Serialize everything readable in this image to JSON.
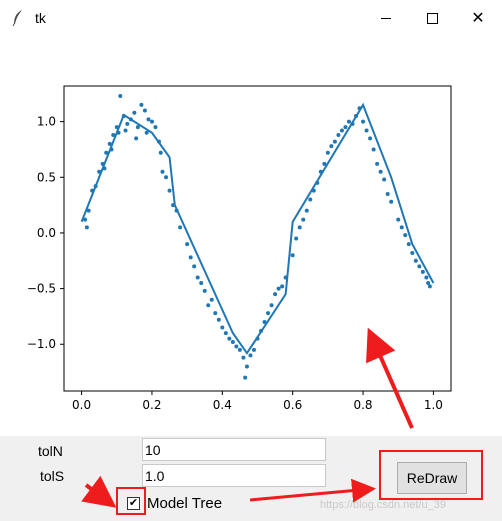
{
  "window": {
    "title": "tk"
  },
  "fields": {
    "toln_label": "tolN",
    "toln_value": "10",
    "tols_label": "tolS",
    "tols_value": "1.0"
  },
  "checkbox": {
    "label": "Model Tree",
    "checked": true,
    "mark": "✔"
  },
  "button": {
    "label": "ReDraw"
  },
  "watermark": "https://blog.csdn.net/u_39",
  "colors": {
    "series": "#1f77b4",
    "annotation": "#ee1c1c"
  },
  "chart_data": {
    "type": "scatter",
    "xlim": [
      -0.05,
      1.05
    ],
    "ylim": [
      -1.42,
      1.32
    ],
    "xticks": [
      "0.0",
      "0.2",
      "0.4",
      "0.6",
      "0.8",
      "1.0"
    ],
    "xtick_values": [
      0.0,
      0.2,
      0.4,
      0.6,
      0.8,
      1.0
    ],
    "yticks": [
      "1.0",
      "0.5",
      "0.0",
      "−0.5",
      "−1.0"
    ],
    "ytick_values": [
      1.0,
      0.5,
      0.0,
      -0.5,
      -1.0
    ],
    "scatter_x": [
      0.01,
      0.015,
      0.02,
      0.03,
      0.04,
      0.05,
      0.06,
      0.065,
      0.07,
      0.08,
      0.085,
      0.09,
      0.1,
      0.105,
      0.11,
      0.12,
      0.125,
      0.13,
      0.14,
      0.15,
      0.155,
      0.16,
      0.17,
      0.18,
      0.185,
      0.19,
      0.2,
      0.21,
      0.22,
      0.225,
      0.23,
      0.24,
      0.25,
      0.26,
      0.27,
      0.28,
      0.3,
      0.31,
      0.32,
      0.33,
      0.34,
      0.35,
      0.36,
      0.37,
      0.38,
      0.39,
      0.4,
      0.41,
      0.42,
      0.43,
      0.44,
      0.45,
      0.46,
      0.465,
      0.47,
      0.48,
      0.49,
      0.5,
      0.51,
      0.52,
      0.53,
      0.54,
      0.55,
      0.56,
      0.57,
      0.58,
      0.6,
      0.61,
      0.62,
      0.63,
      0.64,
      0.65,
      0.66,
      0.67,
      0.68,
      0.69,
      0.7,
      0.71,
      0.72,
      0.73,
      0.74,
      0.75,
      0.76,
      0.77,
      0.78,
      0.79,
      0.8,
      0.81,
      0.82,
      0.83,
      0.84,
      0.85,
      0.86,
      0.87,
      0.88,
      0.9,
      0.91,
      0.92,
      0.93,
      0.94,
      0.95,
      0.96,
      0.97,
      0.98,
      0.985,
      0.99
    ],
    "scatter_y": [
      0.12,
      0.05,
      0.2,
      0.38,
      0.42,
      0.55,
      0.62,
      0.58,
      0.72,
      0.8,
      0.75,
      0.88,
      0.95,
      0.9,
      1.23,
      1.05,
      0.92,
      0.98,
      1.02,
      1.08,
      0.85,
      0.95,
      1.15,
      1.1,
      0.9,
      1.02,
      1.0,
      0.95,
      0.82,
      0.72,
      0.55,
      0.5,
      0.38,
      0.25,
      0.2,
      0.05,
      -0.1,
      -0.22,
      -0.3,
      -0.4,
      -0.45,
      -0.52,
      -0.65,
      -0.6,
      -0.72,
      -0.78,
      -0.85,
      -0.9,
      -0.95,
      -0.98,
      -1.02,
      -1.05,
      -1.12,
      -1.3,
      -1.2,
      -1.1,
      -1.05,
      -0.95,
      -0.88,
      -0.8,
      -0.72,
      -0.65,
      -0.55,
      -0.5,
      -0.48,
      -0.4,
      -0.2,
      -0.05,
      0.05,
      0.12,
      0.2,
      0.3,
      0.38,
      0.45,
      0.55,
      0.62,
      0.72,
      0.78,
      0.82,
      0.88,
      0.92,
      0.95,
      1.0,
      0.98,
      1.05,
      1.12,
      1.0,
      0.92,
      0.85,
      0.75,
      0.62,
      0.55,
      0.48,
      0.35,
      0.28,
      0.12,
      0.05,
      -0.02,
      -0.1,
      -0.18,
      -0.25,
      -0.3,
      -0.35,
      -0.4,
      -0.45,
      -0.48
    ],
    "line_x": [
      0.0,
      0.12,
      0.2,
      0.25,
      0.265,
      0.43,
      0.47,
      0.58,
      0.6,
      0.8,
      0.88,
      0.94,
      1.0
    ],
    "line_y": [
      0.1,
      1.06,
      0.9,
      0.68,
      0.25,
      -0.9,
      -1.08,
      -0.55,
      0.1,
      1.15,
      0.5,
      -0.1,
      -0.45
    ]
  }
}
